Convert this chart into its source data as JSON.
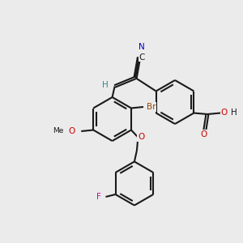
{
  "bg_color": "#ebebeb",
  "bond_color": "#1a1a1a",
  "colors": {
    "N": "#0000cc",
    "O": "#cc0000",
    "F": "#cc00aa",
    "Br": "#994400",
    "H": "#2e8b8b",
    "C": "#1a1a1a"
  },
  "lw": 1.5,
  "fs": 7.5,
  "xlim": [
    0,
    10
  ],
  "ylim": [
    0,
    10
  ],
  "R": 0.9
}
